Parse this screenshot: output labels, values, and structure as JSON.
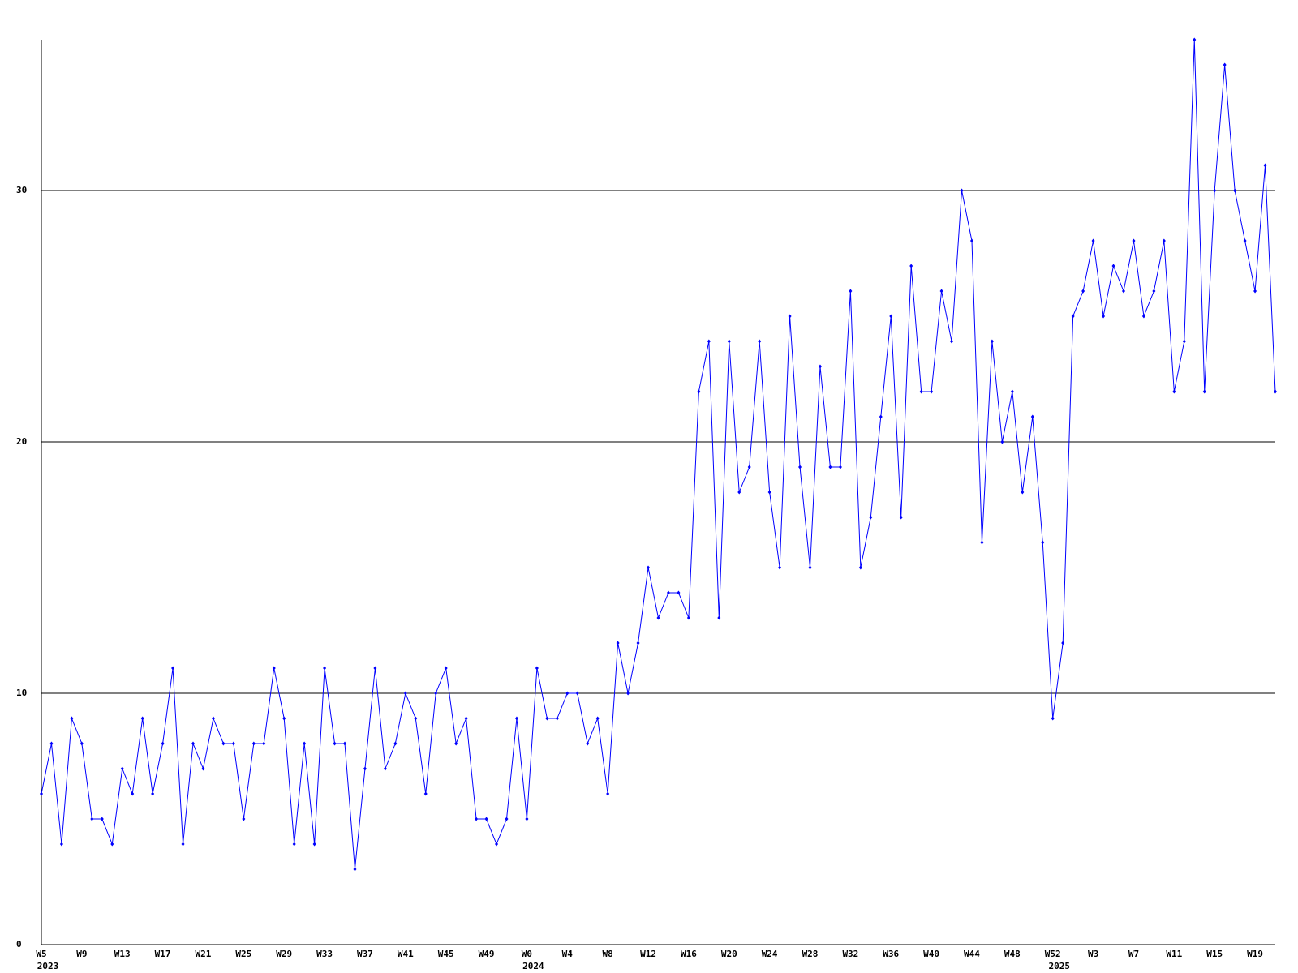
{
  "chart_data": {
    "type": "line",
    "categories": [
      "W5",
      null,
      null,
      null,
      "W9",
      null,
      null,
      null,
      "W13",
      null,
      null,
      null,
      "W17",
      null,
      null,
      null,
      "W21",
      null,
      null,
      null,
      "W25",
      null,
      null,
      null,
      "W29",
      null,
      null,
      null,
      "W33",
      null,
      null,
      null,
      "W37",
      null,
      null,
      null,
      "W41",
      null,
      null,
      null,
      "W45",
      null,
      null,
      null,
      "W49",
      null,
      null,
      null,
      "W0",
      null,
      null,
      null,
      "W4",
      null,
      null,
      null,
      "W8",
      null,
      null,
      null,
      "W12",
      null,
      null,
      null,
      "W16",
      null,
      null,
      null,
      "W20",
      null,
      null,
      null,
      "W24",
      null,
      null,
      null,
      "W28",
      null,
      null,
      null,
      "W32",
      null,
      null,
      null,
      "W36",
      null,
      null,
      null,
      "W40",
      null,
      null,
      null,
      "W44",
      null,
      null,
      null,
      "W48",
      null,
      null,
      null,
      "W52",
      null,
      null,
      null,
      "W3",
      null,
      null,
      null,
      "W7",
      null,
      null,
      null,
      "W11",
      null,
      null,
      null,
      "W15",
      null,
      null,
      null,
      "W19",
      null,
      null
    ],
    "category_groups": [
      "2023",
      null,
      null,
      null,
      null,
      null,
      null,
      null,
      null,
      null,
      null,
      null,
      null,
      null,
      null,
      null,
      null,
      null,
      null,
      null,
      null,
      null,
      null,
      null,
      null,
      null,
      null,
      null,
      null,
      null,
      null,
      null,
      null,
      null,
      null,
      null,
      null,
      null,
      null,
      null,
      null,
      null,
      null,
      null,
      null,
      null,
      null,
      null,
      "2024",
      null,
      null,
      null,
      null,
      null,
      null,
      null,
      null,
      null,
      null,
      null,
      null,
      null,
      null,
      null,
      null,
      null,
      null,
      null,
      null,
      null,
      null,
      null,
      null,
      null,
      null,
      null,
      null,
      null,
      null,
      null,
      null,
      null,
      null,
      null,
      null,
      null,
      null,
      null,
      null,
      null,
      null,
      null,
      null,
      null,
      null,
      null,
      null,
      null,
      null,
      null,
      "2025",
      null,
      null,
      null,
      null,
      null,
      null,
      null,
      null,
      null,
      null,
      null,
      null,
      null,
      null,
      null,
      null,
      null,
      null,
      null,
      null,
      null
    ],
    "series": [
      {
        "color": "#0000ff",
        "values": [
          6,
          8,
          4,
          9,
          8,
          5,
          5,
          4,
          7,
          6,
          9,
          6,
          8,
          11,
          4,
          8,
          7,
          9,
          8,
          8,
          5,
          8,
          8,
          11,
          9,
          4,
          8,
          4,
          11,
          8,
          8,
          3,
          7,
          11,
          7,
          8,
          10,
          9,
          6,
          10,
          11,
          8,
          9,
          5,
          5,
          4,
          5,
          9,
          5,
          11,
          9,
          9,
          10,
          10,
          8,
          9,
          6,
          12,
          10,
          12,
          15,
          13,
          14,
          14,
          13,
          22,
          24,
          13,
          24,
          18,
          19,
          24,
          18,
          15,
          25,
          19,
          15,
          23,
          19,
          19,
          26,
          15,
          17,
          21,
          25,
          17,
          27,
          22,
          22,
          26,
          24,
          30,
          28,
          16,
          24,
          20,
          22,
          18,
          21,
          16,
          9,
          12,
          25,
          26,
          28,
          25,
          27,
          26,
          28,
          25,
          26,
          28,
          22,
          24,
          36,
          22,
          30,
          35,
          30,
          28,
          26,
          31,
          22
        ]
      }
    ],
    "ylim": [
      0,
      36
    ],
    "yticks": [
      0,
      10,
      20,
      30
    ],
    "grid": true
  }
}
